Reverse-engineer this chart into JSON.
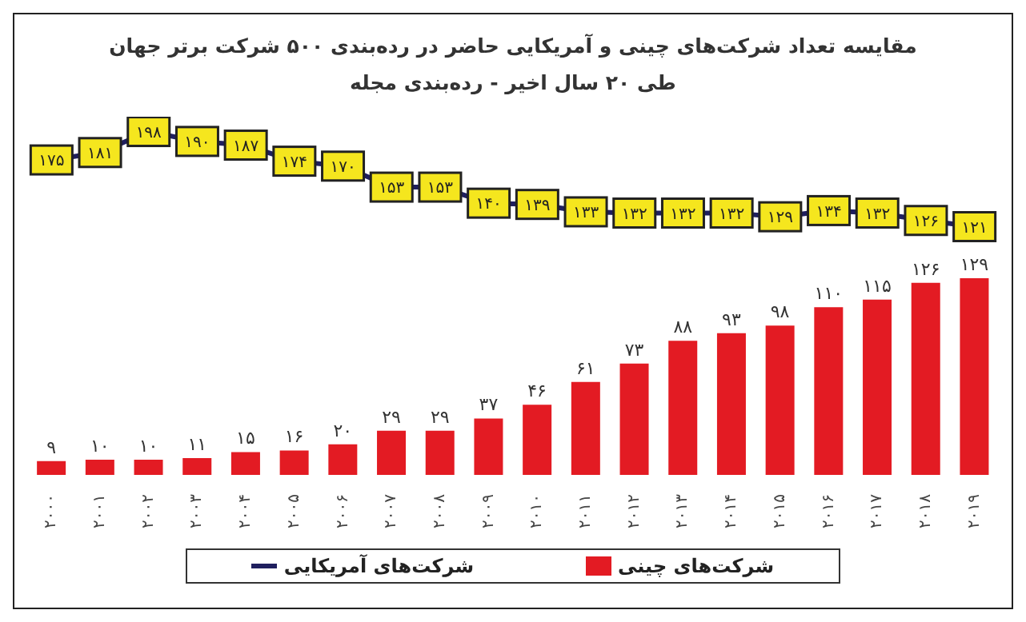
{
  "chart_data": {
    "type": "bar",
    "title": "مقایسه تعداد شرکت‌های چینی و آمریکایی حاضر در رده‌بندی ۵۰۰ شرکت برتر جهان",
    "subtitle": "طی ۲۰ سال اخیر - رده‌بندی مجله",
    "categories": [
      "۲۰۰۰",
      "۲۰۰۱",
      "۲۰۰۲",
      "۲۰۰۳",
      "۲۰۰۴",
      "۲۰۰۵",
      "۲۰۰۶",
      "۲۰۰۷",
      "۲۰۰۸",
      "۲۰۰۹",
      "۲۰۱۰",
      "۲۰۱۱",
      "۲۰۱۲",
      "۲۰۱۳",
      "۲۰۱۴",
      "۲۰۱۵",
      "۲۰۱۶",
      "۲۰۱۷",
      "۲۰۱۸",
      "۲۰۱۹"
    ],
    "series": [
      {
        "name": "شرکت‌های چینی",
        "color": "#e31b23",
        "values": [
          9,
          10,
          10,
          11,
          15,
          16,
          20,
          29,
          29,
          37,
          46,
          61,
          73,
          88,
          93,
          98,
          110,
          115,
          126,
          129
        ],
        "value_labels": [
          "۹",
          "۱۰",
          "۱۰",
          "۱۱",
          "۱۵",
          "۱۶",
          "۲۰",
          "۲۹",
          "۲۹",
          "۳۷",
          "۴۶",
          "۶۱",
          "۷۳",
          "۸۸",
          "۹۳",
          "۹۸",
          "۱۱۰",
          "۱۱۵",
          "۱۲۶",
          "۱۲۹"
        ]
      },
      {
        "name": "شرکت‌های آمریکایی",
        "type": "line",
        "axis": "y2",
        "color": "#1f1f5e",
        "marker": "square",
        "values": [
          175,
          181,
          198,
          190,
          187,
          174,
          170,
          153,
          153,
          140,
          139,
          133,
          132,
          132,
          132,
          129,
          134,
          132,
          126,
          121
        ],
        "value_labels": [
          "۱۷۵",
          "۱۸۱",
          "۱۹۸",
          "۱۹۰",
          "۱۸۷",
          "۱۷۴",
          "۱۷۰",
          "۱۵۳",
          "۱۵۳",
          "۱۴۰",
          "۱۳۹",
          "۱۳۳",
          "۱۳۲",
          "۱۳۲",
          "۱۳۲",
          "۱۲۹",
          "۱۳۴",
          "۱۳۲",
          "۱۲۶",
          "۱۲۱"
        ]
      }
    ],
    "ylim": [
      0,
      235
    ],
    "y2lim": [
      -80,
      210
    ],
    "tick_labels": "x",
    "legend": "bottom"
  }
}
